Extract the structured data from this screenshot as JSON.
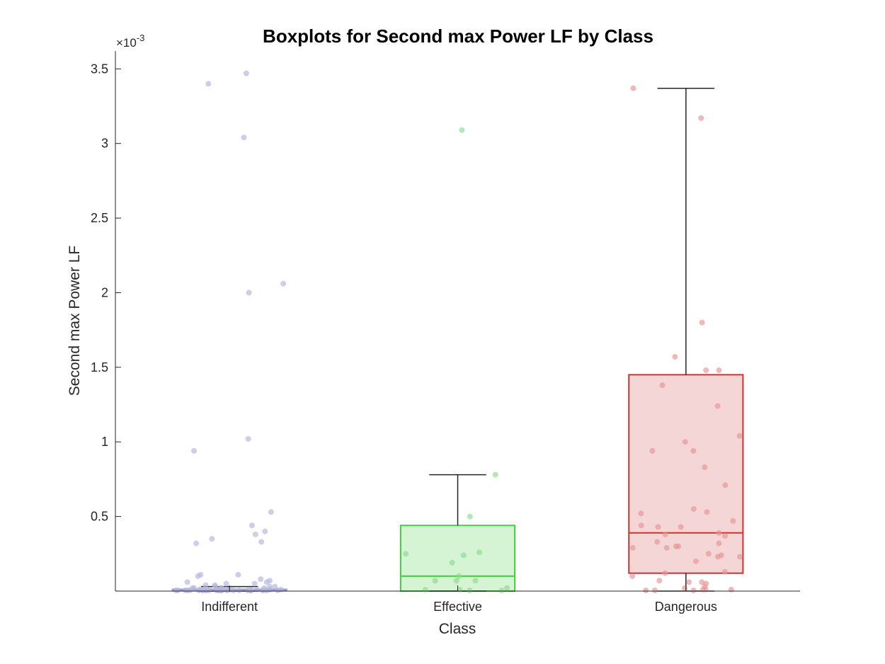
{
  "chart_data": {
    "type": "boxplot",
    "title": "Boxplots for Second max Power LF by Class",
    "xlabel": "Class",
    "ylabel": "Second max Power LF",
    "y_exponent_label": "×10",
    "y_exponent_power": "-3",
    "y_scale": 0.001,
    "ylim": [
      0,
      3.62
    ],
    "yticks": [
      0.5,
      1,
      1.5,
      2,
      2.5,
      3,
      3.5
    ],
    "ytick_labels": [
      "0.5",
      "1",
      "1.5",
      "2",
      "2.5",
      "3",
      "3.5"
    ],
    "categories": [
      "Indifferent",
      "Effective",
      "Dangerous"
    ],
    "grid": false,
    "legend": "none",
    "groups": [
      {
        "name": "Indifferent",
        "box_fill": "#dcdcf2",
        "box_stroke": "#9c9cd4",
        "median_color": "#9c9cd4",
        "point_color": "#b4b4de",
        "q1": 0.002,
        "median": 0.006,
        "q3": 0.012,
        "whisker_low": 0.0,
        "whisker_high": 0.03,
        "points": [
          3.47,
          3.4,
          3.04,
          2.06,
          2.0,
          1.02,
          0.94,
          0.53,
          0.44,
          0.4,
          0.38,
          0.35,
          0.33,
          0.32,
          0.11,
          0.11,
          0.1,
          0.08,
          0.07,
          0.06,
          0.06,
          0.05,
          0.05,
          0.04,
          0.04,
          0.03,
          0.03,
          0.03,
          0.02,
          0.02,
          0.02,
          0.02,
          0.02,
          0.01,
          0.01,
          0.01,
          0.01,
          0.01,
          0.01,
          0.01,
          0.01,
          0.01,
          0.005,
          0.005,
          0.005,
          0.005,
          0.005,
          0.005,
          0.005,
          0.005,
          0.003,
          0.003,
          0.003,
          0.003,
          0.003,
          0.003,
          0.002,
          0.002,
          0.002,
          0.002,
          0.002,
          0.001,
          0.001,
          0.001,
          0.001,
          0.0,
          0.0,
          0.0,
          0.0,
          0.0
        ]
      },
      {
        "name": "Effective",
        "box_fill": "#d4f4d4",
        "box_stroke": "#44cc44",
        "median_color": "#44cc44",
        "point_color": "#8edc8e",
        "q1": 0.0,
        "median": 0.1,
        "q3": 0.44,
        "whisker_low": 0.0,
        "whisker_high": 0.78,
        "points": [
          3.09,
          0.78,
          0.5,
          0.26,
          0.25,
          0.24,
          0.19,
          0.1,
          0.07,
          0.07,
          0.07,
          0.02,
          0.01,
          0.01,
          0.0,
          0.0
        ]
      },
      {
        "name": "Dangerous",
        "box_fill": "#f4d6d6",
        "box_stroke": "#cc3333",
        "median_color": "#cc3333",
        "point_color": "#e89494",
        "q1": 0.12,
        "median": 0.39,
        "q3": 1.45,
        "whisker_low": 0.0,
        "whisker_high": 3.37,
        "points": [
          3.37,
          3.17,
          1.8,
          1.57,
          1.48,
          1.48,
          1.38,
          1.24,
          1.04,
          1.0,
          0.94,
          0.94,
          0.83,
          0.71,
          0.55,
          0.53,
          0.52,
          0.47,
          0.44,
          0.43,
          0.43,
          0.39,
          0.38,
          0.37,
          0.33,
          0.32,
          0.3,
          0.3,
          0.29,
          0.29,
          0.25,
          0.24,
          0.23,
          0.23,
          0.2,
          0.13,
          0.12,
          0.1,
          0.07,
          0.06,
          0.06,
          0.05,
          0.03,
          0.02,
          0.01,
          0.01,
          0.01,
          0.0,
          0.0,
          0.0
        ]
      }
    ]
  }
}
